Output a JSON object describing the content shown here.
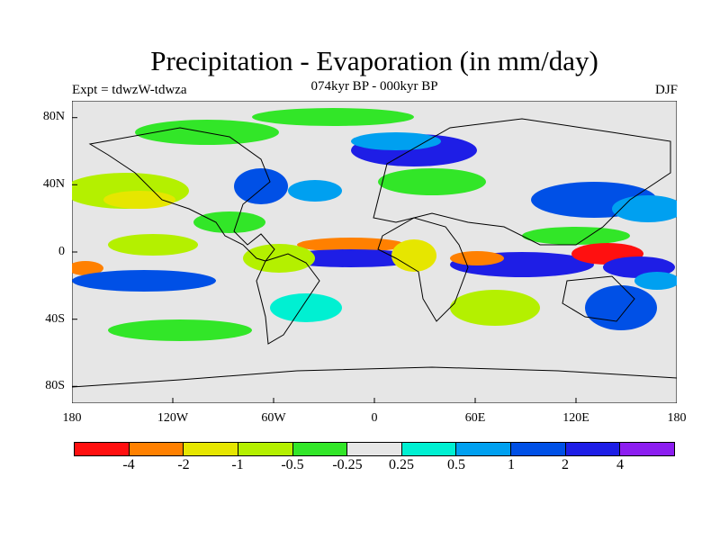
{
  "title": "Precipitation - Evaporation (in mm/day)",
  "subtitle": "074kyr BP - 000kyr BP",
  "experiment": "Expt = tdwzW-tdwza",
  "season": "DJF",
  "lat_labels": [
    "80N",
    "40N",
    "0",
    "40S",
    "80S"
  ],
  "lon_labels": [
    "180",
    "120W",
    "60W",
    "0",
    "60E",
    "120E",
    "180"
  ],
  "colorbar": {
    "colors": [
      "#ff1010",
      "#ff8000",
      "#e6e600",
      "#b4f000",
      "#32e628",
      "#e6e6e6",
      "#00f0d2",
      "#00a0f0",
      "#0050e6",
      "#1e1ee6",
      "#8c1ef0"
    ],
    "labels": [
      "-4",
      "-2",
      "-1",
      "-0.5",
      "-0.25",
      "0.25",
      "0.5",
      "1",
      "2",
      "4"
    ]
  },
  "map_colors": {
    "background": "#e6e6e6",
    "coast": "#000000"
  }
}
